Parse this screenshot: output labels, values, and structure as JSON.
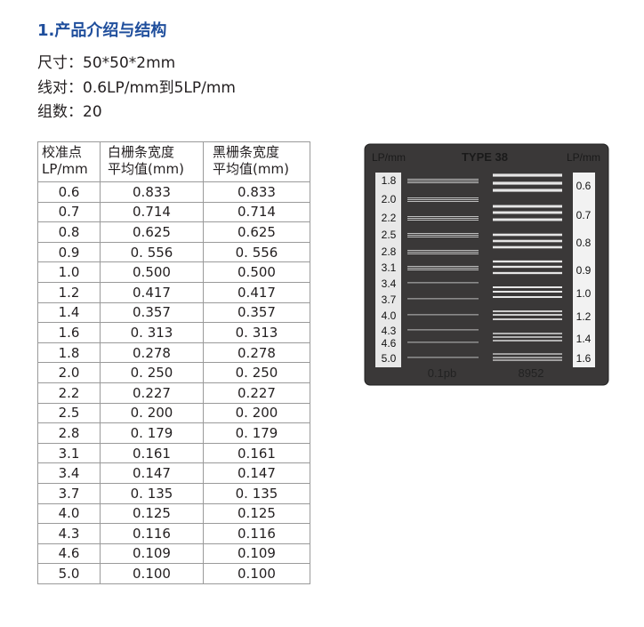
{
  "title": "1.产品介绍与结构",
  "specs": [
    {
      "label": "尺寸：",
      "value": "50*50*2mm"
    },
    {
      "label": "线对：",
      "value": "0.6LP/mm到5LP/mm"
    },
    {
      "label": "组数：",
      "value": "20"
    }
  ],
  "table": {
    "headers": [
      [
        "校准点",
        "LP/mm"
      ],
      [
        "白栅条宽度",
        "平均值(mm)"
      ],
      [
        "黑栅条宽度",
        "平均值(mm)"
      ]
    ],
    "rows": [
      [
        "0.6",
        "0.833",
        "0.833"
      ],
      [
        "0.7",
        "0.714",
        "0.714"
      ],
      [
        "0.8",
        "0.625",
        "0.625"
      ],
      [
        "0.9",
        "0. 556",
        "0. 556"
      ],
      [
        "1.0",
        "0.500",
        "0.500"
      ],
      [
        "1.2",
        "0.417",
        "0.417"
      ],
      [
        "1.4",
        "0.357",
        "0.357"
      ],
      [
        "1.6",
        "0. 313",
        "0. 313"
      ],
      [
        "1.8",
        "0.278",
        "0.278"
      ],
      [
        "2.0",
        "0. 250",
        "0. 250"
      ],
      [
        "2.2",
        "0.227",
        "0.227"
      ],
      [
        "2.5",
        "0. 200",
        "0. 200"
      ],
      [
        "2.8",
        "0. 179",
        "0. 179"
      ],
      [
        "3.1",
        "0.161",
        "0.161"
      ],
      [
        "3.4",
        "0.147",
        "0.147"
      ],
      [
        "3.7",
        "0. 135",
        "0. 135"
      ],
      [
        "4.0",
        "0.125",
        "0.125"
      ],
      [
        "4.3",
        "0.116",
        "0.116"
      ],
      [
        "4.6",
        "0.109",
        "0.109"
      ],
      [
        "5.0",
        "0.100",
        "0.100"
      ]
    ]
  },
  "plate": {
    "top_left": "LP/mm",
    "top_center": "TYPE 38",
    "top_right": "LP/mm",
    "left_labels": [
      "1.8",
      "2.0",
      "2.2",
      "2.5",
      "2.8",
      "3.1",
      "3.4",
      "3.7",
      "4.0",
      "4.3",
      "4.6",
      "5.0"
    ],
    "right_labels": [
      "0.6",
      "0.7",
      "0.8",
      "0.9",
      "1.0",
      "1.2",
      "1.4",
      "1.6"
    ],
    "bottom_left": "0.1pb",
    "bottom_right": "8952"
  }
}
